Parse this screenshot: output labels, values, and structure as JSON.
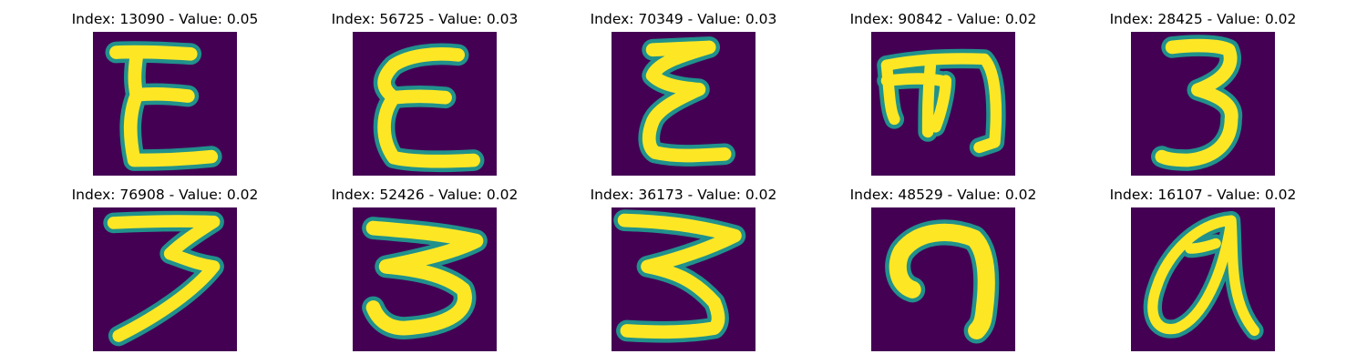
{
  "colors": {
    "background": "#440154",
    "mid": "#21918c",
    "bright": "#fde725"
  },
  "panels": [
    {
      "title": "Index: 13090 - Value: 0.05",
      "glyph": "E"
    },
    {
      "title": "Index: 56725 - Value: 0.03",
      "glyph": "E"
    },
    {
      "title": "Index: 70349 - Value: 0.03",
      "glyph": "E"
    },
    {
      "title": "Index: 90842 - Value: 0.02",
      "glyph": "m"
    },
    {
      "title": "Index: 28425 - Value: 0.02",
      "glyph": "3"
    },
    {
      "title": "Index: 76908 - Value: 0.02",
      "glyph": "3"
    },
    {
      "title": "Index: 52426 - Value: 0.02",
      "glyph": "3"
    },
    {
      "title": "Index: 36173 - Value: 0.02",
      "glyph": "3"
    },
    {
      "title": "Index: 48529 - Value: 0.02",
      "glyph": "hook"
    },
    {
      "title": "Index: 16107 - Value: 0.02",
      "glyph": "a"
    }
  ]
}
